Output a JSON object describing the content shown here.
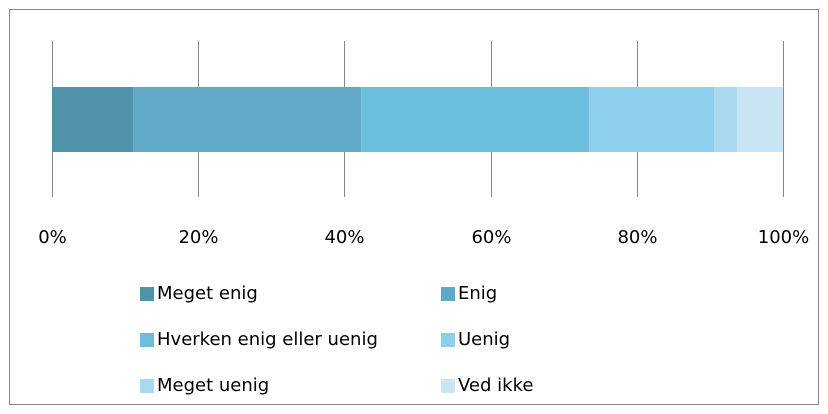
{
  "chart_data": {
    "type": "bar",
    "orientation": "horizontal",
    "stacked": true,
    "categories": [
      null
    ],
    "series": [
      {
        "name": "Meget enig",
        "color": "#4f92a9",
        "values": [
          11.1
        ]
      },
      {
        "name": "Enig",
        "color": "#5fa9c6",
        "values": [
          31.2
        ]
      },
      {
        "name": "Hverken enig eller uenig",
        "color": "#6cbedd",
        "values": [
          31.2
        ]
      },
      {
        "name": "Uenig",
        "color": "#8dcfea",
        "values": [
          17.1
        ]
      },
      {
        "name": "Meget uenig",
        "color": "#a9d8ef",
        "values": [
          3.1
        ]
      },
      {
        "name": "Ved ikke",
        "color": "#c9e4f2",
        "values": [
          6.3
        ]
      }
    ],
    "xlim": [
      0,
      100
    ],
    "xticks": [
      {
        "value": 0,
        "label": "0%"
      },
      {
        "value": 20,
        "label": "20%"
      },
      {
        "value": 40,
        "label": "40%"
      },
      {
        "value": 60,
        "label": "60%"
      },
      {
        "value": 80,
        "label": "80%"
      },
      {
        "value": 100,
        "label": "100%"
      }
    ],
    "grid": true,
    "legend": "bottom"
  }
}
